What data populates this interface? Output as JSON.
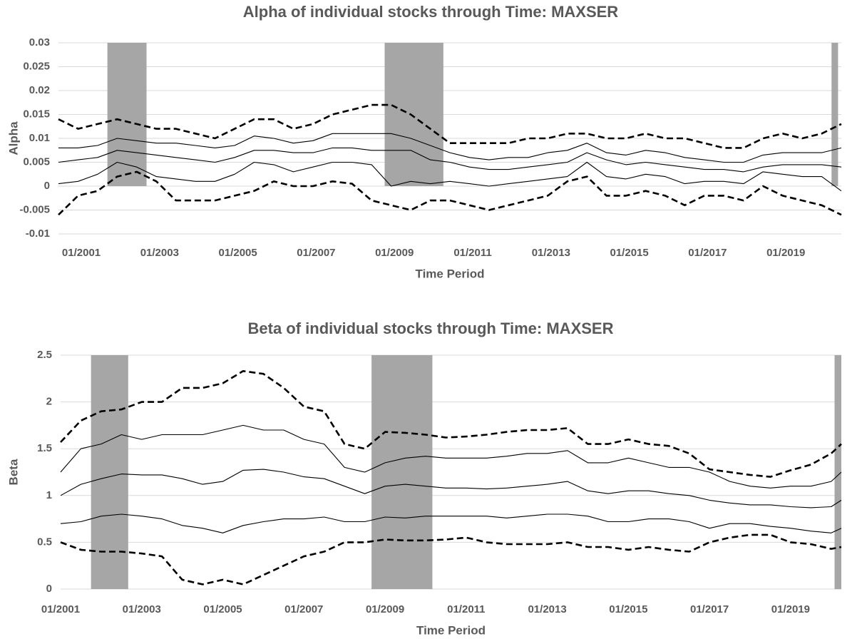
{
  "chart_data": [
    {
      "type": "line",
      "title": "Alpha of individual stocks through Time: MAXSER",
      "xlabel": "Time Period",
      "ylabel": "Alpha",
      "x": [
        "06/2000",
        "12/2000",
        "06/2001",
        "12/2001",
        "06/2002",
        "12/2002",
        "06/2003",
        "12/2003",
        "06/2004",
        "12/2004",
        "06/2005",
        "12/2005",
        "06/2006",
        "12/2006",
        "06/2007",
        "12/2007",
        "06/2008",
        "12/2008",
        "06/2009",
        "12/2009",
        "06/2010",
        "12/2010",
        "06/2011",
        "12/2011",
        "06/2012",
        "12/2012",
        "06/2013",
        "12/2013",
        "06/2014",
        "12/2014",
        "06/2015",
        "12/2015",
        "06/2016",
        "12/2016",
        "06/2017",
        "12/2017",
        "06/2018",
        "12/2018",
        "06/2019",
        "12/2019",
        "06/2020"
      ],
      "xlim": [
        "06/2000",
        "06/2020"
      ],
      "xticks": [
        "01/2001",
        "01/2003",
        "01/2005",
        "01/2007",
        "01/2009",
        "01/2011",
        "01/2013",
        "01/2015",
        "01/2017",
        "01/2019"
      ],
      "ylim": [
        -0.01,
        0.03
      ],
      "yticks": [
        0.03,
        0.025,
        0.02,
        0.015,
        0.01,
        0.005,
        0,
        -0.005,
        -0.01
      ],
      "grid": true,
      "shaded": [
        [
          "09/2001",
          "09/2002"
        ],
        [
          "10/2008",
          "04/2010"
        ],
        [
          "03/2020",
          "05/2020"
        ]
      ],
      "shade_color": "#a6a6a6",
      "series": [
        {
          "color": "#000000",
          "dashed": true,
          "values": [
            0.014,
            0.012,
            0.013,
            0.014,
            0.013,
            0.012,
            0.012,
            0.011,
            0.01,
            0.012,
            0.014,
            0.014,
            0.012,
            0.013,
            0.015,
            0.016,
            0.017,
            0.017,
            0.015,
            0.012,
            0.009,
            0.009,
            0.009,
            0.009,
            0.01,
            0.01,
            0.011,
            0.011,
            0.01,
            0.01,
            0.011,
            0.01,
            0.01,
            0.009,
            0.008,
            0.008,
            0.01,
            0.011,
            0.01,
            0.011,
            0.013
          ]
        },
        {
          "color": "#000000",
          "dashed": false,
          "values": [
            0.008,
            0.008,
            0.0085,
            0.01,
            0.0095,
            0.009,
            0.009,
            0.0085,
            0.008,
            0.0085,
            0.0105,
            0.01,
            0.009,
            0.0095,
            0.011,
            0.011,
            0.011,
            0.011,
            0.01,
            0.0085,
            0.007,
            0.006,
            0.0055,
            0.006,
            0.006,
            0.007,
            0.0075,
            0.009,
            0.007,
            0.0065,
            0.0075,
            0.007,
            0.006,
            0.0055,
            0.005,
            0.005,
            0.0065,
            0.007,
            0.007,
            0.007,
            0.008
          ]
        },
        {
          "color": "#000000",
          "dashed": false,
          "values": [
            0.005,
            0.0055,
            0.006,
            0.0075,
            0.007,
            0.0065,
            0.006,
            0.0055,
            0.005,
            0.006,
            0.0075,
            0.0075,
            0.007,
            0.007,
            0.008,
            0.008,
            0.0075,
            0.0075,
            0.0075,
            0.0055,
            0.005,
            0.004,
            0.0035,
            0.0035,
            0.004,
            0.0045,
            0.005,
            0.007,
            0.0055,
            0.0045,
            0.005,
            0.0045,
            0.004,
            0.0035,
            0.0035,
            0.003,
            0.004,
            0.0045,
            0.0045,
            0.0045,
            0.004
          ]
        },
        {
          "color": "#000000",
          "dashed": false,
          "values": [
            0.0005,
            0.001,
            0.0025,
            0.005,
            0.004,
            0.002,
            0.0015,
            0.001,
            0.001,
            0.0025,
            0.005,
            0.0045,
            0.003,
            0.004,
            0.005,
            0.005,
            0.0045,
            0.0,
            0.001,
            0.0005,
            0.001,
            0.0005,
            0.0,
            0.0005,
            0.001,
            0.0015,
            0.002,
            0.005,
            0.002,
            0.0015,
            0.0025,
            0.002,
            0.0005,
            0.001,
            0.001,
            0.0005,
            0.003,
            0.0025,
            0.002,
            0.002,
            -0.001
          ]
        },
        {
          "color": "#000000",
          "dashed": true,
          "values": [
            -0.006,
            -0.002,
            -0.001,
            0.002,
            0.003,
            0.001,
            -0.003,
            -0.003,
            -0.003,
            -0.002,
            -0.001,
            0.001,
            0.0,
            0.0,
            0.001,
            0.0005,
            -0.003,
            -0.004,
            -0.005,
            -0.003,
            -0.003,
            -0.004,
            -0.005,
            -0.004,
            -0.003,
            -0.002,
            0.001,
            0.002,
            -0.002,
            -0.002,
            -0.001,
            -0.002,
            -0.004,
            -0.002,
            -0.002,
            -0.003,
            0.0,
            -0.002,
            -0.003,
            -0.004,
            -0.006
          ]
        }
      ]
    },
    {
      "type": "line",
      "title": "Beta of individual stocks through Time: MAXSER",
      "xlabel": "Time Period",
      "ylabel": "Beta",
      "x": [
        "01/2001",
        "07/2001",
        "01/2002",
        "07/2002",
        "01/2003",
        "07/2003",
        "01/2004",
        "07/2004",
        "01/2005",
        "07/2005",
        "01/2006",
        "07/2006",
        "01/2007",
        "07/2007",
        "01/2008",
        "07/2008",
        "01/2009",
        "07/2009",
        "01/2010",
        "07/2010",
        "01/2011",
        "07/2011",
        "01/2012",
        "07/2012",
        "01/2013",
        "07/2013",
        "01/2014",
        "07/2014",
        "01/2015",
        "07/2015",
        "01/2016",
        "07/2016",
        "01/2017",
        "07/2017",
        "01/2018",
        "07/2018",
        "01/2019",
        "07/2019",
        "01/2020",
        "04/2020"
      ],
      "xlim": [
        "01/2001",
        "04/2020"
      ],
      "xticks": [
        "01/2001",
        "01/2003",
        "01/2005",
        "01/2007",
        "01/2009",
        "01/2011",
        "01/2013",
        "01/2015",
        "01/2017",
        "01/2019"
      ],
      "ylim": [
        0,
        2.5
      ],
      "yticks": [
        2.5,
        2,
        1.5,
        1,
        0.5,
        0
      ],
      "grid": true,
      "shaded": [
        [
          "10/2001",
          "09/2002"
        ],
        [
          "09/2008",
          "03/2010"
        ],
        [
          "02/2020",
          "04/2020"
        ]
      ],
      "shade_color": "#a6a6a6",
      "series": [
        {
          "color": "#000000",
          "dashed": true,
          "values": [
            1.57,
            1.8,
            1.9,
            1.92,
            2.0,
            2.0,
            2.15,
            2.15,
            2.2,
            2.33,
            2.3,
            2.15,
            1.95,
            1.9,
            1.55,
            1.5,
            1.68,
            1.67,
            1.65,
            1.62,
            1.63,
            1.65,
            1.68,
            1.7,
            1.7,
            1.72,
            1.55,
            1.55,
            1.6,
            1.55,
            1.53,
            1.45,
            1.28,
            1.25,
            1.22,
            1.2,
            1.27,
            1.33,
            1.45,
            1.55
          ]
        },
        {
          "color": "#000000",
          "dashed": false,
          "values": [
            1.25,
            1.5,
            1.55,
            1.65,
            1.6,
            1.65,
            1.65,
            1.65,
            1.7,
            1.75,
            1.7,
            1.7,
            1.6,
            1.55,
            1.3,
            1.25,
            1.35,
            1.4,
            1.42,
            1.4,
            1.4,
            1.4,
            1.42,
            1.45,
            1.45,
            1.48,
            1.35,
            1.35,
            1.4,
            1.35,
            1.3,
            1.3,
            1.25,
            1.15,
            1.1,
            1.08,
            1.1,
            1.1,
            1.15,
            1.25
          ]
        },
        {
          "color": "#000000",
          "dashed": false,
          "values": [
            1.0,
            1.12,
            1.18,
            1.23,
            1.22,
            1.22,
            1.18,
            1.12,
            1.15,
            1.27,
            1.28,
            1.25,
            1.2,
            1.18,
            1.1,
            1.02,
            1.1,
            1.12,
            1.1,
            1.08,
            1.08,
            1.07,
            1.08,
            1.1,
            1.12,
            1.15,
            1.05,
            1.02,
            1.05,
            1.05,
            1.02,
            1.0,
            0.95,
            0.92,
            0.9,
            0.9,
            0.88,
            0.87,
            0.88,
            0.95
          ]
        },
        {
          "color": "#000000",
          "dashed": false,
          "values": [
            0.7,
            0.72,
            0.78,
            0.8,
            0.78,
            0.75,
            0.68,
            0.65,
            0.6,
            0.68,
            0.72,
            0.75,
            0.75,
            0.77,
            0.72,
            0.72,
            0.77,
            0.76,
            0.78,
            0.78,
            0.78,
            0.78,
            0.76,
            0.78,
            0.8,
            0.8,
            0.78,
            0.72,
            0.72,
            0.75,
            0.75,
            0.72,
            0.65,
            0.7,
            0.7,
            0.67,
            0.65,
            0.62,
            0.6,
            0.65
          ]
        },
        {
          "color": "#000000",
          "dashed": true,
          "values": [
            0.5,
            0.42,
            0.4,
            0.4,
            0.38,
            0.35,
            0.1,
            0.05,
            0.1,
            0.05,
            0.15,
            0.25,
            0.35,
            0.4,
            0.5,
            0.5,
            0.53,
            0.52,
            0.52,
            0.53,
            0.55,
            0.5,
            0.48,
            0.48,
            0.48,
            0.5,
            0.45,
            0.45,
            0.42,
            0.45,
            0.42,
            0.4,
            0.5,
            0.55,
            0.58,
            0.58,
            0.5,
            0.48,
            0.43,
            0.45
          ]
        }
      ]
    }
  ]
}
